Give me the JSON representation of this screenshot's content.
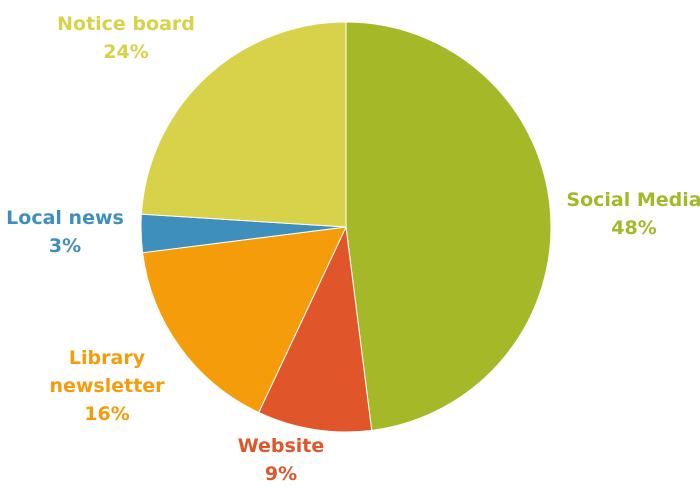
{
  "chart_data": {
    "type": "pie",
    "start_angle_deg": 0,
    "direction": "clockwise",
    "slices": [
      {
        "label": "Social Media",
        "percent_label": "48%",
        "value": 48,
        "color": "#a5b828"
      },
      {
        "label": "Website",
        "percent_label": "9%",
        "value": 9,
        "color": "#e0552a"
      },
      {
        "label": "Library newsletter",
        "label_lines": [
          "Library",
          "newsletter"
        ],
        "percent_label": "16%",
        "value": 16,
        "color": "#f59c0a"
      },
      {
        "label": "Local news",
        "percent_label": "3%",
        "value": 3,
        "color": "#3f8fbd"
      },
      {
        "label": "Notice board",
        "percent_label": "24%",
        "value": 24,
        "color": "#d8d24a"
      }
    ]
  }
}
